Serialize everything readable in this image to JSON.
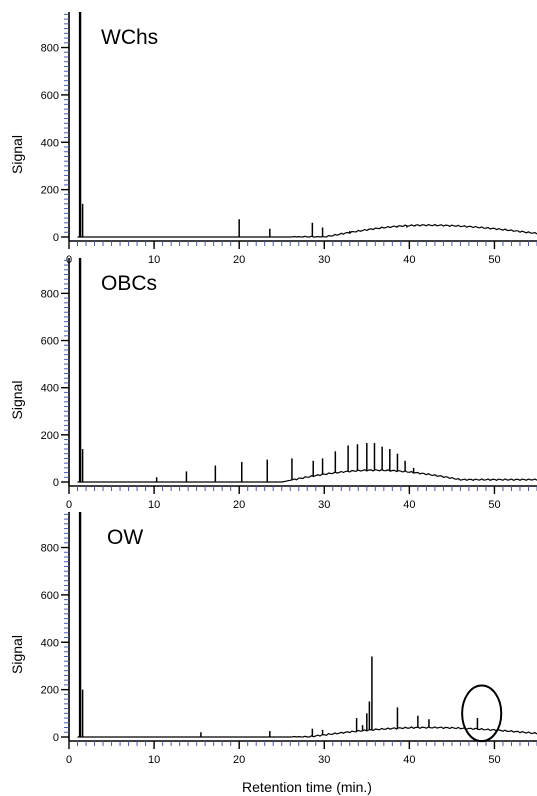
{
  "chart_data": [
    {
      "type": "line",
      "title": "WChs",
      "ylabel": "Signal",
      "xlabel": "",
      "xlim": [
        0,
        55
      ],
      "ylim": [
        0,
        950
      ],
      "x_ticks": [
        0,
        10,
        20,
        30,
        40,
        50
      ],
      "y_ticks": [
        0,
        200,
        400,
        600,
        800
      ],
      "x_tick_labels": [
        "0",
        "10",
        "20",
        "30",
        "40",
        "50"
      ],
      "y_tick_labels": [
        "0",
        "200",
        "400",
        "600",
        "800"
      ],
      "grid": false,
      "baseline_hump": {
        "start": 30,
        "peak_x": 42,
        "peak_y": 50,
        "end": 55,
        "tail": 15
      },
      "series": [
        {
          "peaks": [
            {
              "x": 1.3,
              "y": 950
            },
            {
              "x": 1.6,
              "y": 140
            },
            {
              "x": 20.0,
              "y": 75
            },
            {
              "x": 23.6,
              "y": 35
            },
            {
              "x": 28.6,
              "y": 60
            },
            {
              "x": 29.8,
              "y": 40
            },
            {
              "x": 33.0,
              "y": 25
            },
            {
              "x": 35.2,
              "y": 35
            },
            {
              "x": 36.6,
              "y": 35
            },
            {
              "x": 37.5,
              "y": 45
            },
            {
              "x": 38.6,
              "y": 40
            },
            {
              "x": 39.7,
              "y": 40
            },
            {
              "x": 40.7,
              "y": 45
            },
            {
              "x": 41.8,
              "y": 50
            }
          ]
        }
      ]
    },
    {
      "type": "line",
      "title": "OBCs",
      "ylabel": "Signal",
      "xlabel": "",
      "xlim": [
        0,
        55
      ],
      "ylim": [
        0,
        950
      ],
      "x_ticks": [
        0,
        10,
        20,
        30,
        40,
        50
      ],
      "y_ticks": [
        0,
        200,
        400,
        600,
        800
      ],
      "x_tick_labels": [
        "0",
        "10",
        "20",
        "30",
        "40",
        "50"
      ],
      "y_tick_labels": [
        "0",
        "200",
        "400",
        "600",
        "800"
      ],
      "grid": false,
      "baseline_hump": {
        "start": 25,
        "peak_x": 36,
        "peak_y": 50,
        "end": 46,
        "tail": 10
      },
      "series": [
        {
          "peaks": [
            {
              "x": 1.3,
              "y": 950
            },
            {
              "x": 1.6,
              "y": 140
            },
            {
              "x": 10.3,
              "y": 20
            },
            {
              "x": 13.8,
              "y": 45
            },
            {
              "x": 17.2,
              "y": 70
            },
            {
              "x": 20.3,
              "y": 85
            },
            {
              "x": 23.3,
              "y": 95
            },
            {
              "x": 26.2,
              "y": 100
            },
            {
              "x": 28.7,
              "y": 90
            },
            {
              "x": 29.8,
              "y": 100
            },
            {
              "x": 31.3,
              "y": 130
            },
            {
              "x": 32.8,
              "y": 155
            },
            {
              "x": 33.9,
              "y": 160
            },
            {
              "x": 35.0,
              "y": 165
            },
            {
              "x": 35.9,
              "y": 165
            },
            {
              "x": 36.8,
              "y": 150
            },
            {
              "x": 37.7,
              "y": 140
            },
            {
              "x": 38.6,
              "y": 120
            },
            {
              "x": 39.5,
              "y": 90
            },
            {
              "x": 40.5,
              "y": 60
            }
          ]
        }
      ]
    },
    {
      "type": "line",
      "title": "OW",
      "ylabel": "Signal",
      "xlabel": "Retention time (min.)",
      "xlim": [
        0,
        55
      ],
      "ylim": [
        0,
        950
      ],
      "x_ticks": [
        0,
        10,
        20,
        30,
        40,
        50
      ],
      "y_ticks": [
        0,
        200,
        400,
        600,
        800
      ],
      "x_tick_labels": [
        "0",
        "10",
        "20",
        "30",
        "40",
        "50"
      ],
      "y_tick_labels": [
        "0",
        "200",
        "400",
        "600",
        "800"
      ],
      "grid": false,
      "baseline_hump": {
        "start": 28,
        "peak_x": 42,
        "peak_y": 40,
        "end": 55,
        "tail": 15
      },
      "series": [
        {
          "peaks": [
            {
              "x": 1.3,
              "y": 950
            },
            {
              "x": 1.6,
              "y": 200
            },
            {
              "x": 15.5,
              "y": 20
            },
            {
              "x": 23.6,
              "y": 25
            },
            {
              "x": 28.6,
              "y": 35
            },
            {
              "x": 29.8,
              "y": 30
            },
            {
              "x": 33.8,
              "y": 80
            },
            {
              "x": 34.5,
              "y": 50
            },
            {
              "x": 35.0,
              "y": 100
            },
            {
              "x": 35.3,
              "y": 150
            },
            {
              "x": 35.6,
              "y": 340
            },
            {
              "x": 38.6,
              "y": 125
            },
            {
              "x": 41.0,
              "y": 90
            },
            {
              "x": 42.3,
              "y": 75
            },
            {
              "x": 48.0,
              "y": 80
            }
          ]
        }
      ],
      "annotations": [
        {
          "type": "ellipse",
          "cx": 48.5,
          "cy": 100,
          "rx": 2.3,
          "ry": 235
        }
      ]
    }
  ],
  "colors": {
    "line": "#000000",
    "axis": "#000000",
    "tick_marks": "#4a5aa8",
    "text": "#000000"
  }
}
